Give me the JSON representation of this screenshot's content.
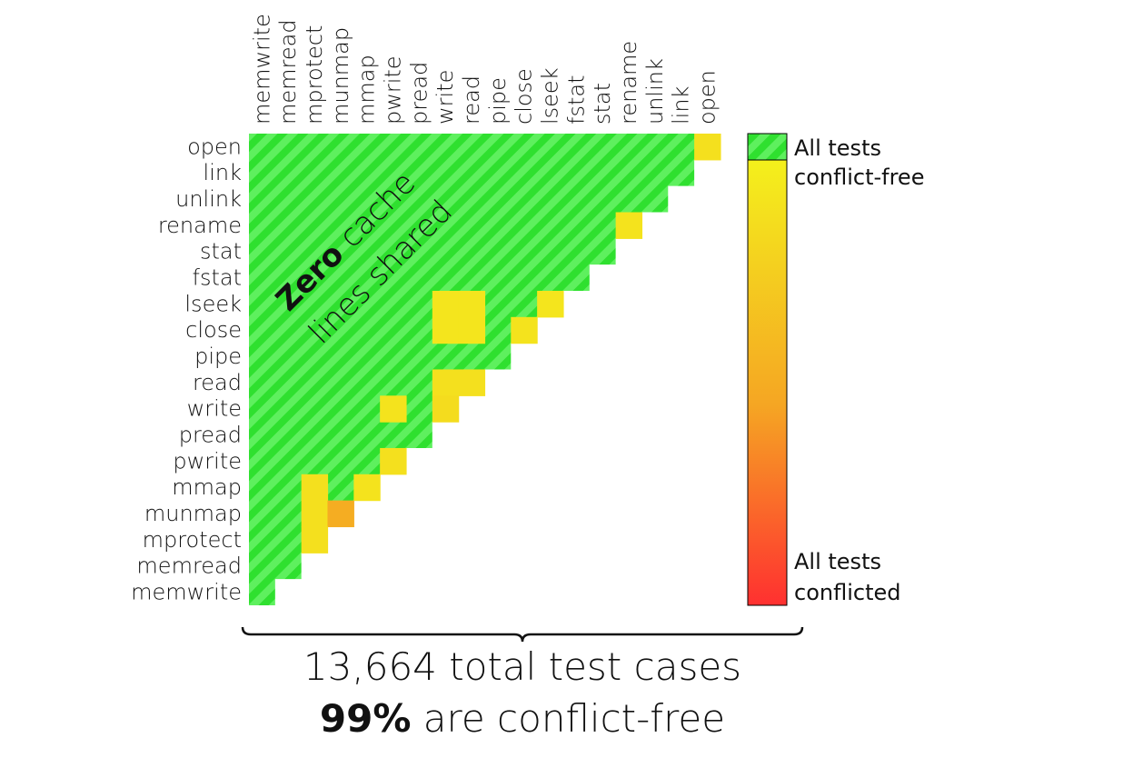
{
  "chart_data": {
    "type": "heatmap",
    "subtype": "lower-triangular pairwise matrix",
    "rows": [
      "open",
      "link",
      "unlink",
      "rename",
      "stat",
      "fstat",
      "lseek",
      "close",
      "pipe",
      "read",
      "write",
      "pread",
      "pwrite",
      "mmap",
      "munmap",
      "mprotect",
      "memread",
      "memwrite"
    ],
    "columns": [
      "memwrite",
      "memread",
      "mprotect",
      "munmap",
      "mmap",
      "pwrite",
      "pread",
      "write",
      "read",
      "pipe",
      "close",
      "lseek",
      "fstat",
      "stat",
      "rename",
      "unlink",
      "link",
      "open"
    ],
    "default_cell": "conflict-free",
    "value_meaning": "fraction of tests conflicted (0 = all conflict-free, 1 = all conflicted)",
    "cells": [
      {
        "row": "open",
        "col": "open",
        "value": 0.12
      },
      {
        "row": "rename",
        "col": "rename",
        "value": 0.1
      },
      {
        "row": "lseek",
        "col": "lseek",
        "value": 0.08
      },
      {
        "row": "lseek",
        "col": "write",
        "value": 0.08
      },
      {
        "row": "lseek",
        "col": "read",
        "value": 0.08
      },
      {
        "row": "close",
        "col": "write",
        "value": 0.08
      },
      {
        "row": "close",
        "col": "read",
        "value": 0.08
      },
      {
        "row": "close",
        "col": "close",
        "value": 0.1
      },
      {
        "row": "read",
        "col": "write",
        "value": 0.12
      },
      {
        "row": "read",
        "col": "read",
        "value": 0.12
      },
      {
        "row": "write",
        "col": "pwrite",
        "value": 0.1
      },
      {
        "row": "write",
        "col": "write",
        "value": 0.15
      },
      {
        "row": "pwrite",
        "col": "pwrite",
        "value": 0.12
      },
      {
        "row": "mmap",
        "col": "mprotect",
        "value": 0.12
      },
      {
        "row": "mmap",
        "col": "mmap",
        "value": 0.1
      },
      {
        "row": "munmap",
        "col": "mprotect",
        "value": 0.12
      },
      {
        "row": "munmap",
        "col": "munmap",
        "value": 0.5
      },
      {
        "row": "mprotect",
        "col": "mprotect",
        "value": 0.12
      }
    ],
    "annotation": {
      "bold": "Zero",
      "rest": " cache",
      "line2": "lines shared"
    },
    "legend": {
      "top_label_1": "All tests",
      "top_label_2": "conflict-free",
      "bottom_label_1": "All tests",
      "bottom_label_2": "conflicted",
      "colors": {
        "free_stripe_1": "#2fe02f",
        "free_stripe_2": "#5ef05e",
        "grad_top": "#f4f01c",
        "grad_mid": "#f5a623",
        "grad_bottom": "#ff3030"
      }
    }
  },
  "caption": {
    "line1": "13,664 total test cases",
    "line2_bold": "99%",
    "line2_rest": " are conflict-free"
  }
}
